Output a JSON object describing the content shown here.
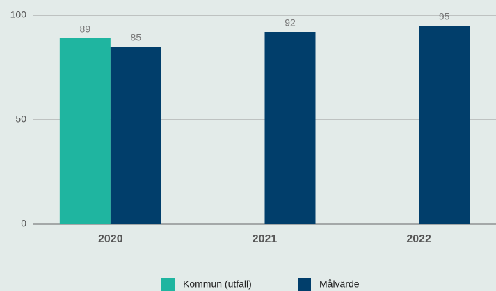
{
  "chart_data": {
    "type": "bar",
    "categories": [
      "2020",
      "2021",
      "2022"
    ],
    "series": [
      {
        "name": "Kommun (utfall)",
        "color": "#1fb5a0",
        "values": [
          89,
          null,
          null
        ]
      },
      {
        "name": "Målvärde",
        "color": "#013e6b",
        "values": [
          85,
          92,
          95
        ]
      }
    ],
    "ylim": [
      0,
      100
    ],
    "yticks": [
      0,
      50,
      100
    ],
    "grid": true,
    "legend": "bottom"
  }
}
